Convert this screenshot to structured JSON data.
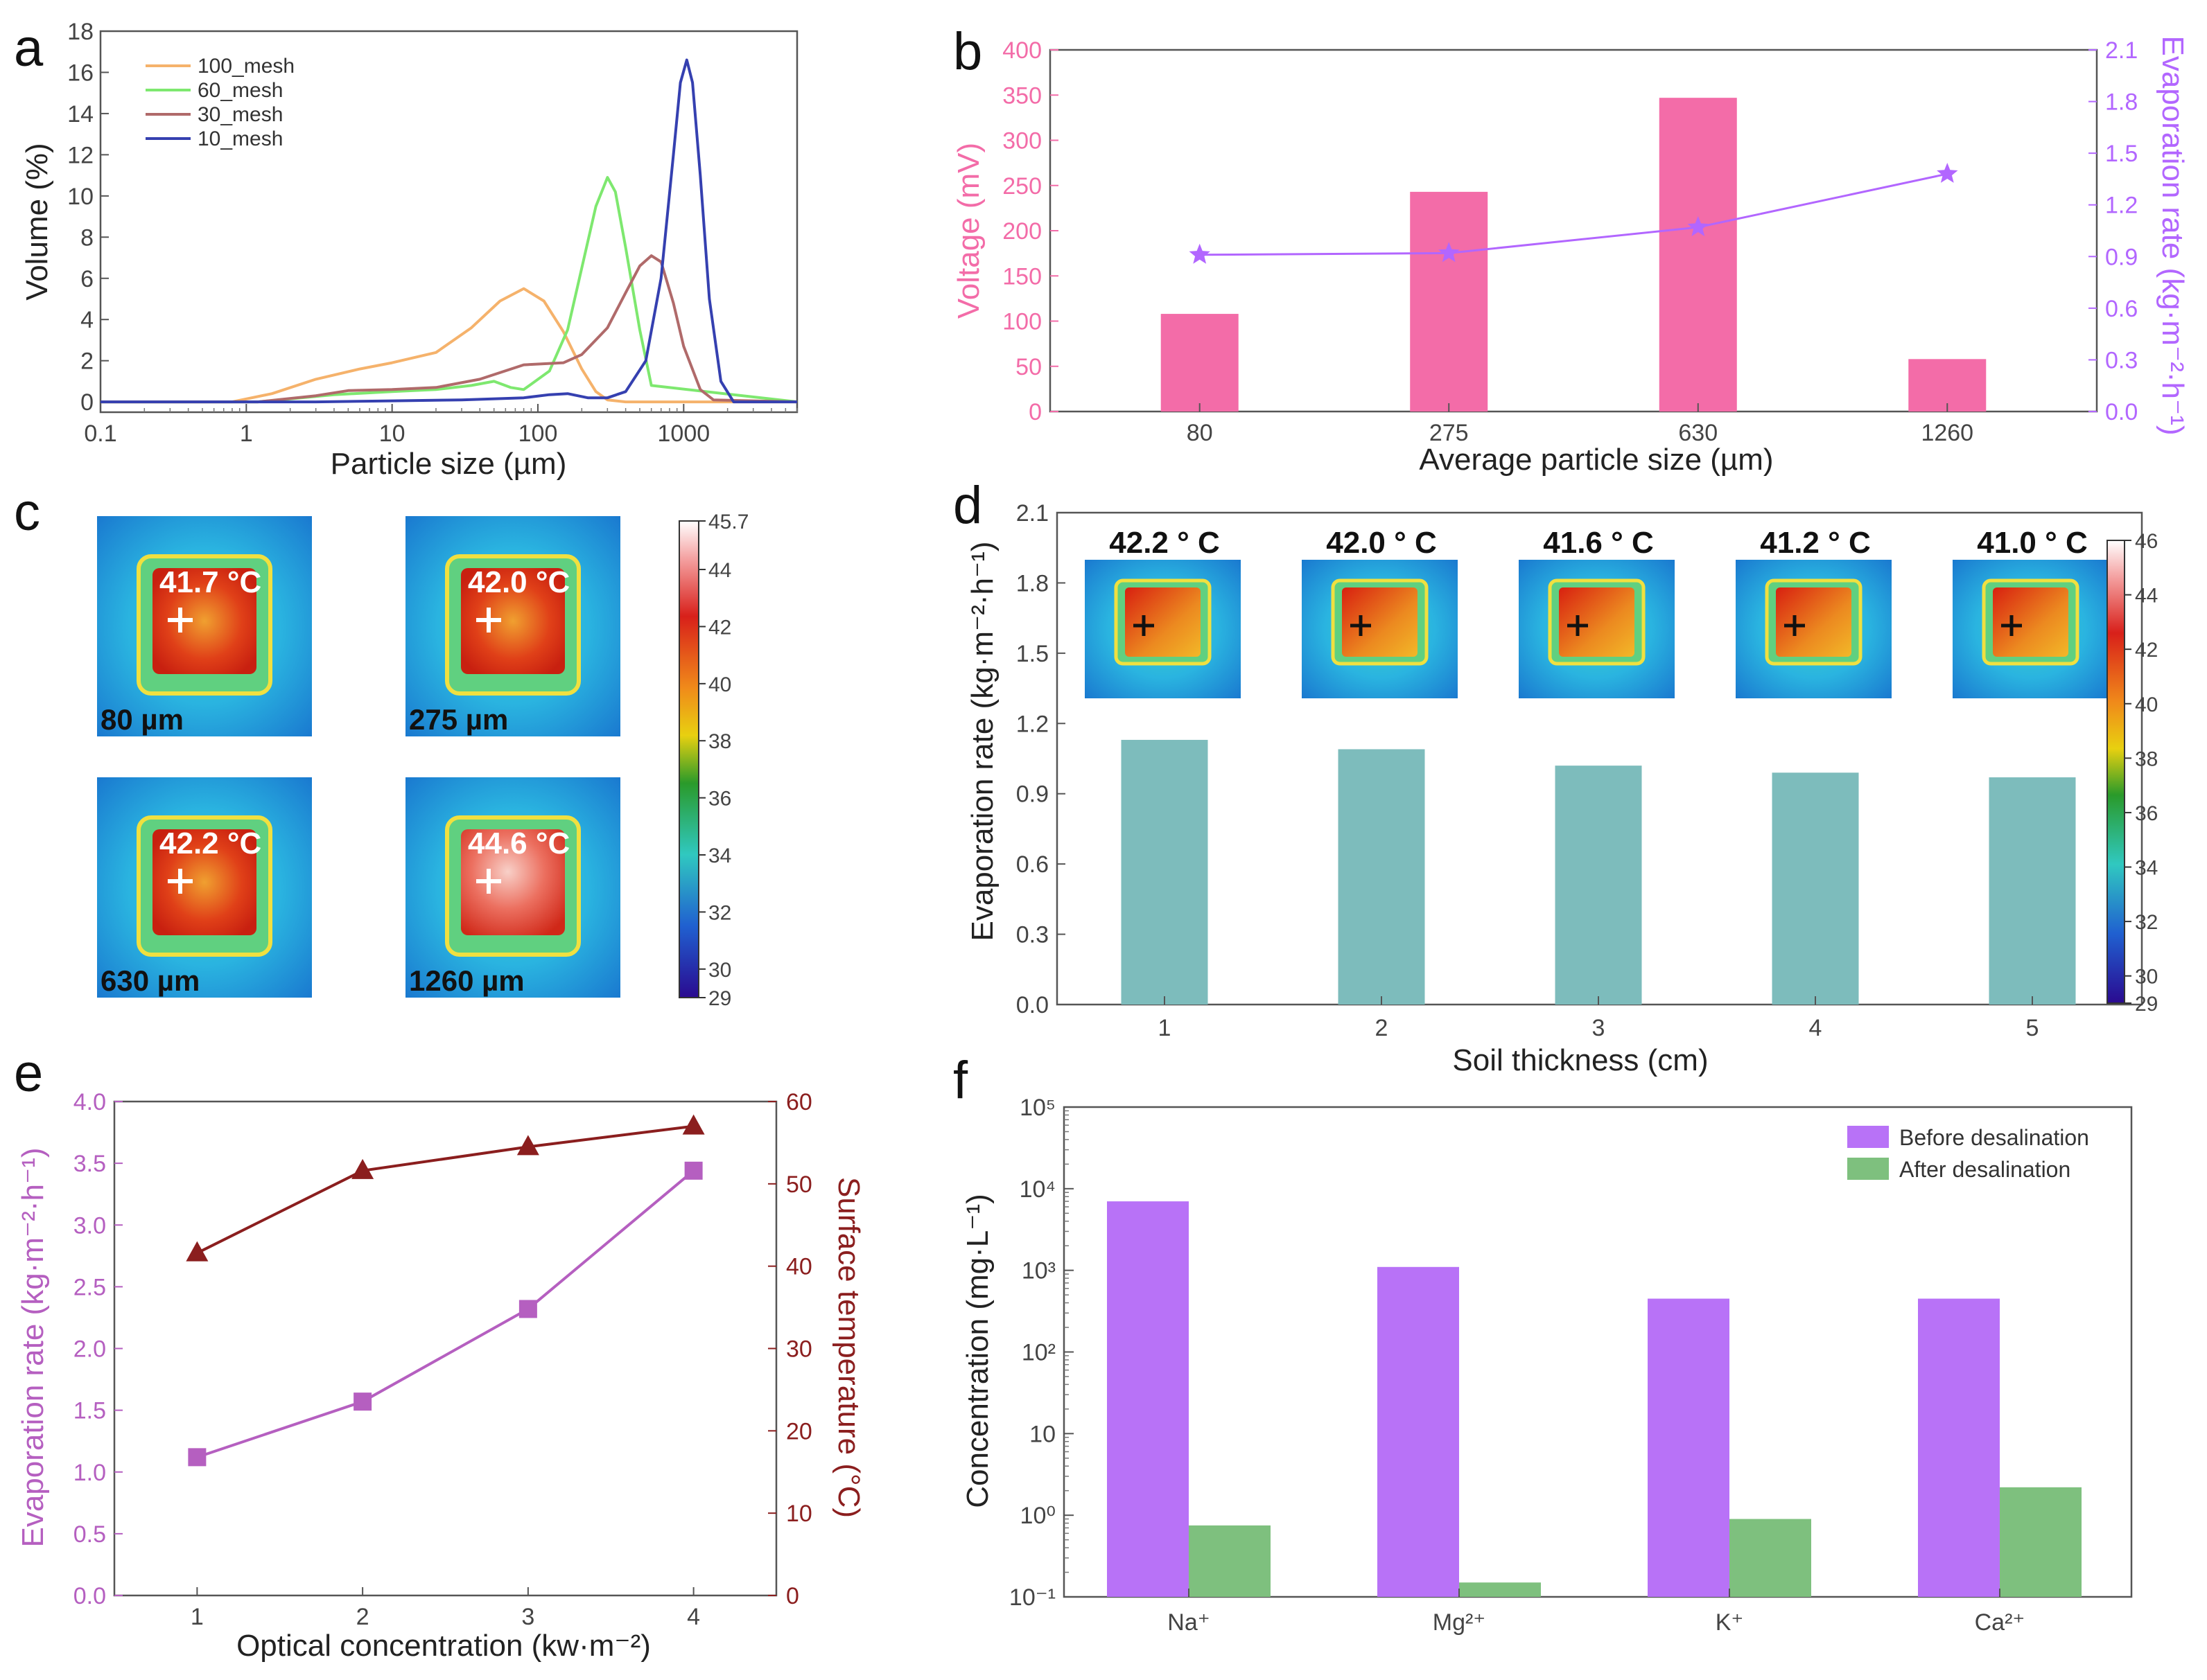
{
  "chart_data": [
    {
      "panel": "a",
      "type": "line",
      "xscale": "log",
      "xlabel": "Particle size (µm)",
      "ylabel": "Volume (%)",
      "xlim": [
        0.1,
        6000
      ],
      "ylim": [
        -0.5,
        18
      ],
      "xticks": [
        "0.1",
        "1",
        "10",
        "100",
        "1000"
      ],
      "yticks": [
        "0",
        "2",
        "4",
        "6",
        "8",
        "10",
        "12",
        "14",
        "16",
        "18"
      ],
      "series": [
        {
          "name": "100_mesh",
          "color": "#f5b26b",
          "x": [
            0.1,
            0.8,
            1.5,
            3,
            6,
            10,
            20,
            35,
            55,
            80,
            110,
            150,
            200,
            250,
            300,
            400,
            6000
          ],
          "y": [
            0,
            0,
            0.4,
            1.1,
            1.6,
            1.9,
            2.4,
            3.6,
            4.9,
            5.5,
            4.9,
            3.4,
            1.6,
            0.5,
            0.1,
            0,
            0
          ]
        },
        {
          "name": "60_mesh",
          "color": "#7ee86f",
          "x": [
            0.1,
            1.2,
            2,
            4,
            10,
            20,
            35,
            50,
            65,
            80,
            120,
            160,
            200,
            250,
            300,
            340,
            400,
            500,
            600,
            6000
          ],
          "y": [
            0,
            0,
            0.15,
            0.35,
            0.5,
            0.6,
            0.8,
            1.0,
            0.7,
            0.6,
            1.5,
            3.5,
            6.5,
            9.5,
            10.9,
            10.2,
            7.5,
            3.5,
            0.8,
            0
          ]
        },
        {
          "name": "30_mesh",
          "color": "#b06a6a",
          "x": [
            0.1,
            1.2,
            3,
            5,
            10,
            20,
            40,
            80,
            150,
            200,
            300,
            400,
            500,
            600,
            700,
            850,
            1000,
            1300,
            1600,
            6000
          ],
          "y": [
            0,
            0,
            0.3,
            0.55,
            0.6,
            0.7,
            1.1,
            1.8,
            1.9,
            2.3,
            3.6,
            5.3,
            6.6,
            7.1,
            6.8,
            4.8,
            2.7,
            0.6,
            0.1,
            0
          ]
        },
        {
          "name": "10_mesh",
          "color": "#3540b0",
          "x": [
            0.1,
            3,
            10,
            30,
            80,
            120,
            160,
            220,
            300,
            400,
            550,
            700,
            850,
            950,
            1050,
            1150,
            1300,
            1500,
            1800,
            2200,
            6000
          ],
          "y": [
            0,
            0,
            0.05,
            0.1,
            0.2,
            0.35,
            0.4,
            0.2,
            0.2,
            0.5,
            2.0,
            6.0,
            12.0,
            15.5,
            16.6,
            15.5,
            11.0,
            5.0,
            1.0,
            0,
            0
          ]
        }
      ]
    },
    {
      "panel": "b",
      "type": "bar",
      "xlabel": "Average particle size (µm)",
      "ylabel": "Voltage (mV)",
      "y2label": "Evaporation rate (kg·m⁻²·h⁻¹)",
      "categories": [
        "80",
        "275",
        "630",
        "1260"
      ],
      "ylim": [
        0,
        400
      ],
      "y2lim": [
        0,
        2.1
      ],
      "yticks": [
        "0",
        "50",
        "100",
        "150",
        "200",
        "250",
        "300",
        "350",
        "400"
      ],
      "y2ticks": [
        "0.0",
        "0.3",
        "0.6",
        "0.9",
        "1.2",
        "1.5",
        "1.8",
        "2.1"
      ],
      "series": [
        {
          "name": "Voltage",
          "type": "bar",
          "color": "#f36ca8",
          "values": [
            108,
            243,
            347,
            58
          ]
        },
        {
          "name": "Evaporation rate",
          "type": "line",
          "marker": "star",
          "color": "#b266ff",
          "values": [
            0.91,
            0.92,
            1.07,
            1.38
          ]
        }
      ]
    },
    {
      "panel": "c",
      "type": "thermal-images",
      "colorbar_ticks": [
        "45.7",
        "44",
        "42",
        "40",
        "38",
        "36",
        "34",
        "32",
        "30",
        "29"
      ],
      "images": [
        {
          "temp": "41.7 °C",
          "size": "80 µm"
        },
        {
          "temp": "42.0 °C",
          "size": "275 µm"
        },
        {
          "temp": "42.2 °C",
          "size": "630 µm"
        },
        {
          "temp": "44.6 °C",
          "size": "1260 µm"
        }
      ]
    },
    {
      "panel": "d",
      "type": "bar",
      "xlabel": "Soil thickness (cm)",
      "ylabel": "Evaporation rate (kg·m⁻²·h⁻¹)",
      "categories": [
        "1",
        "2",
        "3",
        "4",
        "5"
      ],
      "values": [
        1.13,
        1.09,
        1.02,
        0.99,
        0.97
      ],
      "ylim": [
        0,
        2.1
      ],
      "yticks": [
        "0.0",
        "0.3",
        "0.6",
        "0.9",
        "1.2",
        "1.5",
        "1.8",
        "2.1"
      ],
      "surface_temps": [
        "42.2 ° C",
        "42.0 ° C",
        "41.6 ° C",
        "41.2 ° C",
        "41.0 ° C"
      ],
      "colorbar_ticks": [
        "46",
        "44",
        "42",
        "40",
        "38",
        "36",
        "34",
        "32",
        "30",
        "29"
      ],
      "bar_color": "#7dbcbc"
    },
    {
      "panel": "e",
      "type": "line",
      "xlabel": "Optical concentration (kw·m⁻²)",
      "ylabel": "Evaporation rate (kg·m⁻²·h⁻¹)",
      "y2label": "Surface temperature (°C)",
      "x": [
        1,
        2,
        3,
        4
      ],
      "xlim": [
        0.5,
        4.5
      ],
      "ylim": [
        0,
        4
      ],
      "y2lim": [
        0,
        60
      ],
      "xticks": [
        "1",
        "2",
        "3",
        "4"
      ],
      "yticks": [
        "0.0",
        "0.5",
        "1.0",
        "1.5",
        "2.0",
        "2.5",
        "3.0",
        "3.5",
        "4.0"
      ],
      "y2ticks": [
        "0",
        "10",
        "20",
        "30",
        "40",
        "50",
        "60"
      ],
      "series": [
        {
          "name": "Evaporation rate",
          "axis": "left",
          "marker": "square",
          "color": "#b55fc0",
          "values": [
            1.12,
            1.57,
            2.32,
            3.44
          ]
        },
        {
          "name": "Surface temperature",
          "axis": "right",
          "marker": "triangle",
          "color": "#8b1e1e",
          "values": [
            41.6,
            51.6,
            54.5,
            57.0
          ]
        }
      ]
    },
    {
      "panel": "f",
      "type": "bar",
      "yscale": "log",
      "ylabel": "Concentration (mg·L⁻¹)",
      "categories": [
        "Na⁺",
        "Mg²⁺",
        "K⁺",
        "Ca²⁺"
      ],
      "ylim": [
        0.1,
        100000
      ],
      "yticks": [
        "10⁻¹",
        "10⁰",
        "10",
        "10²",
        "10³",
        "10⁴",
        "10⁵"
      ],
      "series": [
        {
          "name": "Before desalination",
          "color": "#b872f7",
          "values": [
            7000,
            1100,
            450,
            450
          ]
        },
        {
          "name": "After desalination",
          "color": "#7ec07e",
          "values": [
            0.75,
            0.15,
            0.9,
            2.2
          ]
        }
      ]
    }
  ],
  "panel_labels": [
    "a",
    "b",
    "c",
    "d",
    "e",
    "f"
  ]
}
